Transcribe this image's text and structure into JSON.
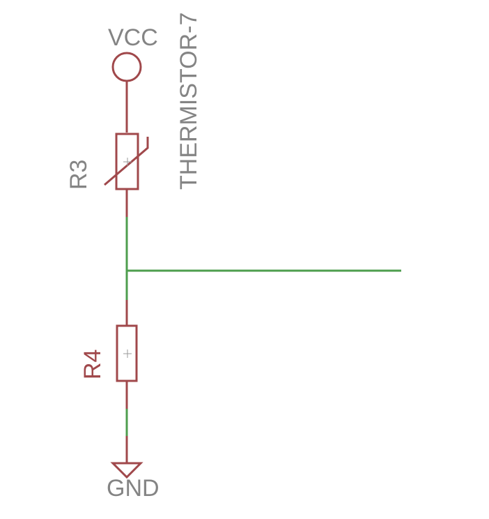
{
  "colors": {
    "background": "#ffffff",
    "component": "#a0484b",
    "net": "#4e9e4e",
    "label_gray": "#848484",
    "label_red": "#a0484b",
    "origin_cross": "#9a9a9a"
  },
  "labels": {
    "vcc": "VCC",
    "gnd": "GND",
    "r3_name": "R3",
    "r3_value": "THERMISTOR-7",
    "r4_name": "R4"
  },
  "components": [
    {
      "name": "VCC",
      "type": "supply-symbol"
    },
    {
      "name": "R3",
      "type": "thermistor",
      "value": "THERMISTOR-7"
    },
    {
      "name": "R4",
      "type": "resistor"
    },
    {
      "name": "GND",
      "type": "ground-symbol"
    }
  ]
}
